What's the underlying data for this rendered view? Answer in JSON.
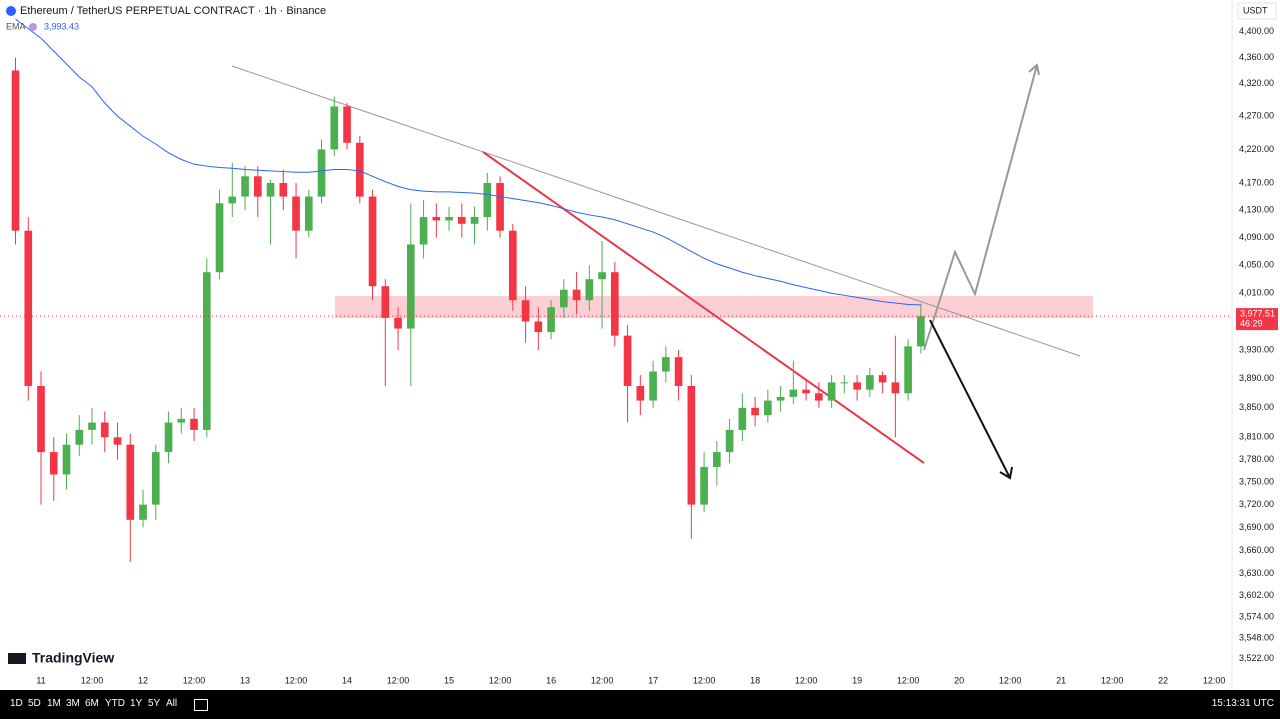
{
  "header": {
    "title": "Ethereum / TetherUS PERPETUAL CONTRACT · 1h · Binance",
    "currency": "USDT"
  },
  "chart_data": {
    "type": "candlestick",
    "x": [
      -6,
      -3,
      0,
      3,
      6,
      9,
      12,
      15,
      18,
      21,
      24,
      27,
      30,
      33,
      36,
      39,
      42,
      45,
      48,
      51,
      54,
      57,
      60,
      63,
      66,
      69,
      72,
      75,
      78,
      81,
      84,
      87,
      90,
      93,
      96,
      99,
      102,
      105,
      108,
      111,
      114,
      117,
      120,
      123,
      126,
      129,
      132,
      135,
      138,
      141,
      144,
      147,
      150,
      153,
      156,
      159,
      162,
      165,
      168,
      171,
      174,
      177,
      180,
      183,
      186,
      189,
      192,
      195,
      198,
      201,
      204,
      207
    ],
    "open": [
      4340,
      4100,
      3880,
      3790,
      3760,
      3800,
      3820,
      3830,
      3810,
      3800,
      3700,
      3720,
      3790,
      3830,
      3835,
      3820,
      4040,
      4140,
      4150,
      4180,
      4150,
      4170,
      4150,
      4100,
      4150,
      4220,
      4285,
      4230,
      4150,
      4020,
      3975,
      3960,
      4080,
      4120,
      4115,
      4120,
      4110,
      4120,
      4170,
      4100,
      4000,
      3970,
      3955,
      3990,
      4015,
      4000,
      4030,
      4040,
      3950,
      3880,
      3860,
      3900,
      3920,
      3880,
      3720,
      3770,
      3790,
      3820,
      3850,
      3840,
      3860,
      3865,
      3875,
      3870,
      3860,
      3885,
      3885,
      3875,
      3895,
      3885,
      3870,
      3935
    ],
    "high": [
      4360,
      4120,
      3900,
      3810,
      3815,
      3840,
      3850,
      3845,
      3830,
      3815,
      3740,
      3800,
      3845,
      3850,
      3850,
      4060,
      4160,
      4200,
      4195,
      4195,
      4175,
      4190,
      4170,
      4160,
      4235,
      4300,
      4290,
      4240,
      4160,
      4030,
      3990,
      4140,
      4145,
      4140,
      4135,
      4140,
      4135,
      4185,
      4180,
      4110,
      4020,
      3990,
      4000,
      4030,
      4040,
      4050,
      4085,
      4055,
      3965,
      3895,
      3915,
      3935,
      3930,
      3895,
      3790,
      3805,
      3835,
      3870,
      3865,
      3875,
      3880,
      3915,
      3890,
      3885,
      3895,
      3895,
      3895,
      3905,
      3900,
      3950,
      3945,
      3995
    ],
    "low": [
      4080,
      3860,
      3720,
      3725,
      3740,
      3785,
      3800,
      3790,
      3780,
      3645,
      3690,
      3700,
      3775,
      3815,
      3805,
      3810,
      4030,
      4120,
      4130,
      4120,
      4080,
      4130,
      4060,
      4090,
      4140,
      4210,
      4220,
      4140,
      4000,
      3880,
      3930,
      3880,
      4060,
      4090,
      4100,
      4090,
      4080,
      4100,
      4090,
      3985,
      3940,
      3930,
      3945,
      3975,
      3980,
      3985,
      3960,
      3935,
      3830,
      3840,
      3850,
      3885,
      3860,
      3675,
      3710,
      3745,
      3775,
      3805,
      3825,
      3830,
      3845,
      3855,
      3860,
      3850,
      3850,
      3870,
      3860,
      3865,
      3870,
      3810,
      3860,
      3925
    ],
    "close": [
      4100,
      3880,
      3790,
      3760,
      3800,
      3820,
      3830,
      3810,
      3800,
      3700,
      3720,
      3790,
      3830,
      3835,
      3820,
      4040,
      4140,
      4150,
      4180,
      4150,
      4170,
      4150,
      4100,
      4150,
      4220,
      4285,
      4230,
      4150,
      4020,
      3975,
      3960,
      4080,
      4120,
      4115,
      4120,
      4110,
      4120,
      4170,
      4100,
      4000,
      3970,
      3955,
      3990,
      4015,
      4000,
      4030,
      4040,
      3950,
      3880,
      3860,
      3900,
      3920,
      3880,
      3720,
      3770,
      3790,
      3820,
      3850,
      3840,
      3860,
      3865,
      3875,
      3870,
      3860,
      3885,
      3885,
      3875,
      3895,
      3885,
      3870,
      3935,
      3977.51
    ],
    "up_color": "#4caf50",
    "down_color": "#f23645",
    "log_scale": true,
    "grid": false,
    "xlim": [
      -9.65,
      280.2
    ],
    "ylim": [
      3483,
      4450
    ],
    "xticks": [
      {
        "value": 0,
        "label": "11"
      },
      {
        "value": 12,
        "label": "12:00"
      },
      {
        "value": 24,
        "label": "12"
      },
      {
        "value": 36,
        "label": "12:00"
      },
      {
        "value": 48,
        "label": "13"
      },
      {
        "value": 60,
        "label": "12:00"
      },
      {
        "value": 72,
        "label": "14"
      },
      {
        "value": 84,
        "label": "12:00"
      },
      {
        "value": 96,
        "label": "15"
      },
      {
        "value": 108,
        "label": "12:00"
      },
      {
        "value": 120,
        "label": "16"
      },
      {
        "value": 132,
        "label": "12:00"
      },
      {
        "value": 144,
        "label": "17"
      },
      {
        "value": 156,
        "label": "12:00"
      },
      {
        "value": 168,
        "label": "18"
      },
      {
        "value": 180,
        "label": "12:00"
      },
      {
        "value": 192,
        "label": "19"
      },
      {
        "value": 204,
        "label": "12:00"
      },
      {
        "value": 216,
        "label": "20"
      },
      {
        "value": 228,
        "label": "12:00"
      },
      {
        "value": 240,
        "label": "21"
      },
      {
        "value": 252,
        "label": "12:00"
      },
      {
        "value": 264,
        "label": "22"
      },
      {
        "value": 276,
        "label": "12:00"
      }
    ],
    "yticks": [
      {
        "value": 4400,
        "label": "4,400.00"
      },
      {
        "value": 4360,
        "label": "4,360.00"
      },
      {
        "value": 4320,
        "label": "4,320.00"
      },
      {
        "value": 4270,
        "label": "4,270.00"
      },
      {
        "value": 4220,
        "label": "4,220.00"
      },
      {
        "value": 4170,
        "label": "4,170.00"
      },
      {
        "value": 4130,
        "label": "4,130.00"
      },
      {
        "value": 4090,
        "label": "4,090.00"
      },
      {
        "value": 4050,
        "label": "4,050.00"
      },
      {
        "value": 4010,
        "label": "4,010.00"
      },
      {
        "value": 3930,
        "label": "3,930.00"
      },
      {
        "value": 3890,
        "label": "3,890.00"
      },
      {
        "value": 3850,
        "label": "3,850.00"
      },
      {
        "value": 3810,
        "label": "3,810.00"
      },
      {
        "value": 3780,
        "label": "3,780.00"
      },
      {
        "value": 3750,
        "label": "3,750.00"
      },
      {
        "value": 3720,
        "label": "3,720.00"
      },
      {
        "value": 3690,
        "label": "3,690.00"
      },
      {
        "value": 3660,
        "label": "3,660.00"
      },
      {
        "value": 3630,
        "label": "3,630.00"
      },
      {
        "value": 3602,
        "label": "3,602.00"
      },
      {
        "value": 3574,
        "label": "3,574.00"
      },
      {
        "value": 3548,
        "label": "3,548.00"
      },
      {
        "value": 3522,
        "label": "3,522.00"
      }
    ],
    "ema": {
      "name": "EMA",
      "color": "#2962ff",
      "values": [
        4420,
        4405,
        4390,
        4370,
        4350,
        4330,
        4315,
        4290,
        4270,
        4255,
        4240,
        4228,
        4215,
        4205,
        4198,
        4195,
        4193,
        4192,
        4190,
        4189,
        4188,
        4187,
        4186,
        4186,
        4188,
        4190,
        4190,
        4188,
        4180,
        4172,
        4165,
        4160,
        4158,
        4157,
        4157,
        4156,
        4155,
        4153,
        4150,
        4147,
        4144,
        4141,
        4137,
        4132,
        4127,
        4123,
        4120,
        4116,
        4110,
        4104,
        4098,
        4090,
        4080,
        4070,
        4060,
        4052,
        4046,
        4040,
        4035,
        4031,
        4027,
        4022,
        4018,
        4014,
        4010,
        4007,
        4004,
        4001,
        3998,
        3996,
        3994,
        3993.43
      ],
      "last": {
        "value": 3993.43,
        "label": "3,993.43"
      }
    },
    "last_price": {
      "value": 3977.51,
      "label": "3,977.51"
    },
    "countdown": "46:29"
  },
  "branding": "TradingView",
  "toolbar": {
    "ranges": [
      "1D",
      "5D",
      "1M",
      "3M",
      "6M",
      "YTD",
      "1Y",
      "5Y",
      "All"
    ],
    "clock": "15:13:31 UTC"
  }
}
